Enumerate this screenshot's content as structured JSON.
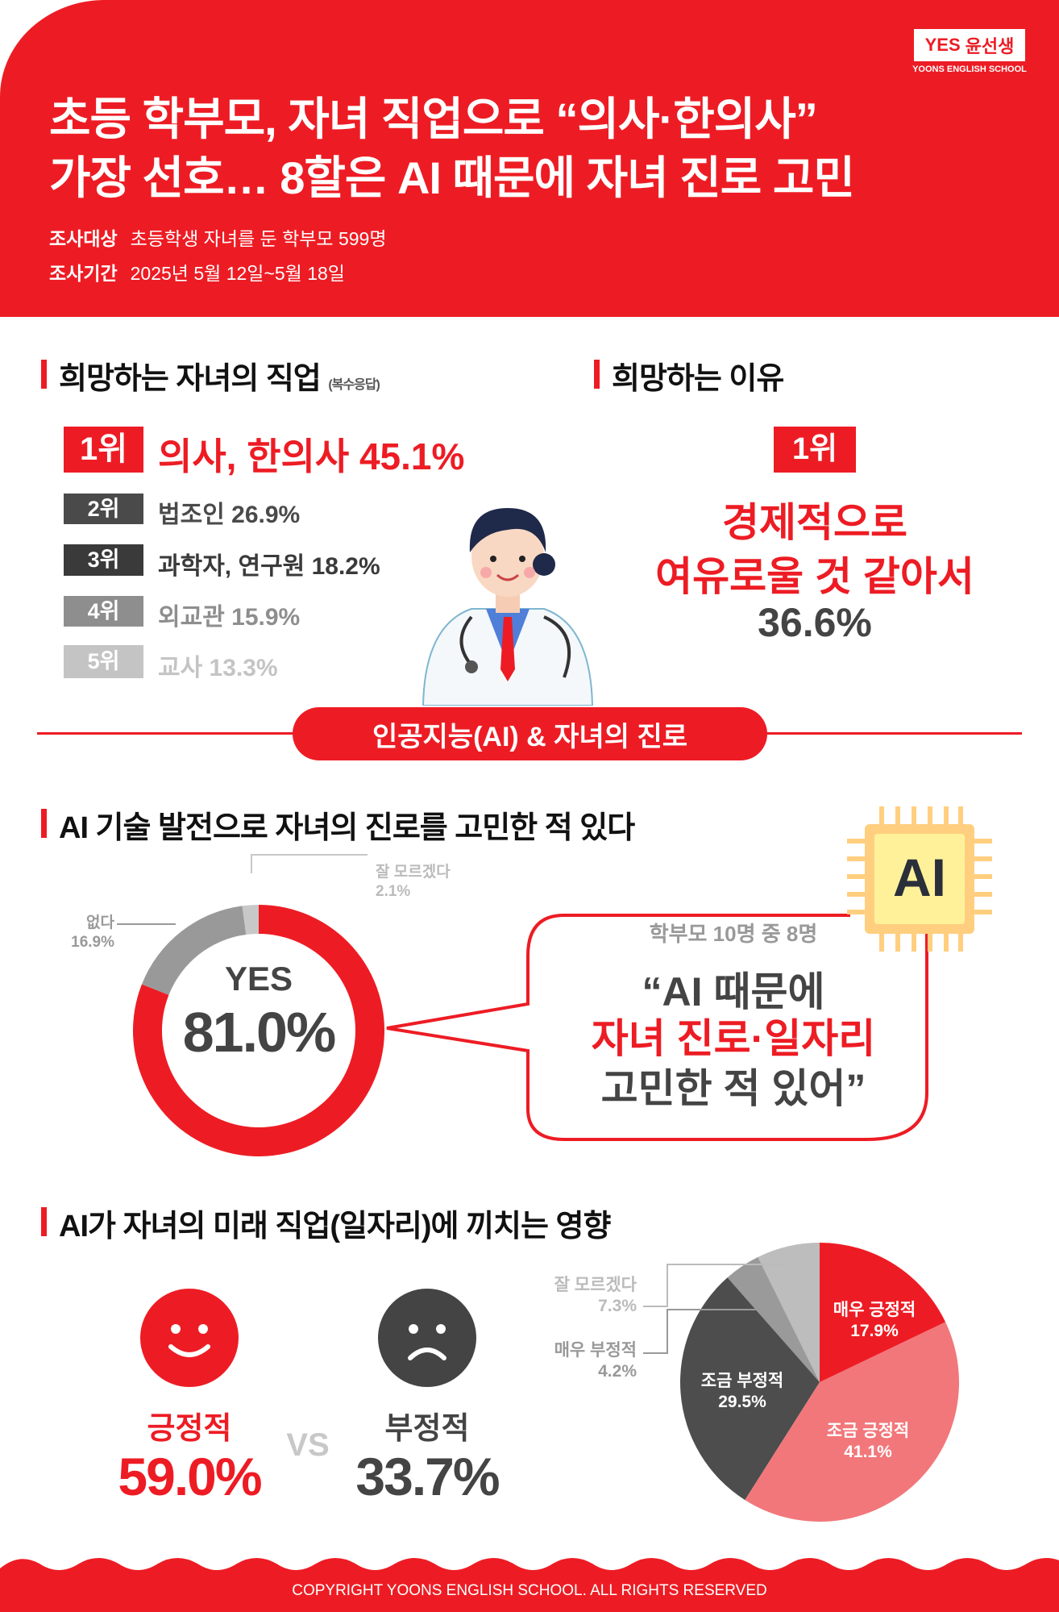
{
  "header": {
    "logo_mark": "YES",
    "logo_text": "윤선생",
    "logo_sub": "YOONS ENGLISH SCHOOL",
    "title_line1": "초등 학부모, 자녀 직업으로 “의사·한의사”",
    "title_line2": "가장 선호…  8할은 AI 때문에 자녀 진로 고민",
    "target_label": "조사대상",
    "target_value": "초등학생 자녀를 둔 학부모 599명",
    "period_label": "조사기간",
    "period_value": "2025년 5월 12일~5월 18일"
  },
  "jobs": {
    "title": "희망하는 자녀의 직업",
    "note": "(복수응답)",
    "items": [
      {
        "rank": "1위",
        "label": "의사, 한의사  45.1%",
        "color": "#ed1c24"
      },
      {
        "rank": "2위",
        "label": "법조인  26.9%",
        "color": "#4a4a4a"
      },
      {
        "rank": "3위",
        "label": "과학자, 연구원  18.2%",
        "color": "#3a3a3a"
      },
      {
        "rank": "4위",
        "label": "외교관  15.9%",
        "color": "#8e8e8e"
      },
      {
        "rank": "5위",
        "label": "교사  13.3%",
        "color": "#c4c4c4"
      }
    ]
  },
  "reason": {
    "title": "희망하는 이유",
    "rank": "1위",
    "line1": "경제적으로",
    "line2": "여유로울 것 같아서",
    "value": "36.6%"
  },
  "divider_label": "인공지능(AI) & 자녀의 진로",
  "ai_worry": {
    "title": "AI 기술 발전으로 자녀의 진로를 고민한 적 있다",
    "center_label": "YES",
    "center_value": "81.0%",
    "bubble_sub": "학부모 10명 중 8명",
    "bubble_line1": "“AI 때문에",
    "bubble_line2": "자녀 진로·일자리",
    "bubble_line3": "고민한 적 있어”",
    "chip_label": "AI"
  },
  "chart_data": [
    {
      "type": "pie",
      "variant": "donut",
      "segments": [
        {
          "label": "YES",
          "value": 81.0,
          "color": "#ed1c24"
        },
        {
          "label": "없다",
          "value": 16.9,
          "color": "#999999"
        },
        {
          "label": "잘 모르겠다",
          "value": 2.1,
          "color": "#c8c8c8"
        }
      ]
    },
    {
      "type": "pie",
      "segments": [
        {
          "label": "매우 긍정적",
          "value": 17.9,
          "color": "#ed1c24"
        },
        {
          "label": "조금 긍정적",
          "value": 41.1,
          "color": "#f2777b"
        },
        {
          "label": "조금 부정적",
          "value": 29.5,
          "color": "#4d4d4d"
        },
        {
          "label": "매우 부정적",
          "value": 4.2,
          "color": "#9a9a9a"
        },
        {
          "label": "잘 모르겠다",
          "value": 7.3,
          "color": "#bdbdbd"
        }
      ]
    }
  ],
  "donut_labels": {
    "unknown": "잘 모르겠다",
    "unknown_value": "2.1%",
    "no": "없다",
    "no_value": "16.9%"
  },
  "impact": {
    "title": "AI가 자녀의 미래 직업(일자리)에 끼치는 영향",
    "positive_label": "긍정적",
    "positive_value": "59.0%",
    "vs": "VS",
    "negative_label": "부정적",
    "negative_value": "33.7%",
    "pie_labels": [
      {
        "label": "매우 긍정적",
        "value": "17.9%"
      },
      {
        "label": "조금 긍정적",
        "value": "41.1%"
      },
      {
        "label": "조금 부정적",
        "value": "29.5%"
      },
      {
        "label": "매우 부정적",
        "value": "4.2%"
      },
      {
        "label": "잘 모르겠다",
        "value": "7.3%"
      }
    ]
  },
  "footer": "COPYRIGHT YOONS ENGLISH SCHOOL. ALL RIGHTS RESERVED"
}
